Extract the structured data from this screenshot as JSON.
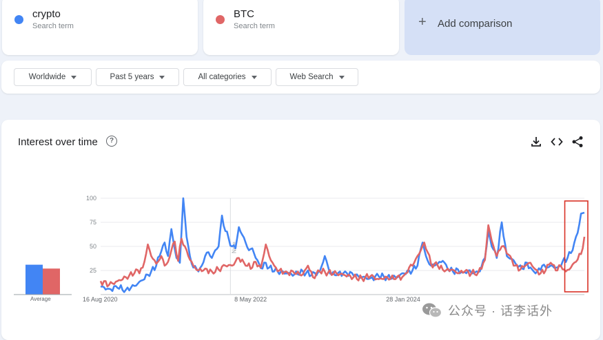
{
  "terms": [
    {
      "name": "crypto",
      "sub": "Search term",
      "color": "#4285f4"
    },
    {
      "name": "BTC",
      "sub": "Search term",
      "color": "#e06666"
    }
  ],
  "add_comparison": {
    "label": "Add comparison",
    "icon": "plus-icon"
  },
  "filters": [
    {
      "label": "Worldwide"
    },
    {
      "label": "Past 5 years"
    },
    {
      "label": "All categories"
    },
    {
      "label": "Web Search"
    }
  ],
  "chart_section": {
    "title": "Interest over time",
    "help_icon": "help-icon",
    "toolbar_icons": [
      "download-icon",
      "embed-icon",
      "share-icon"
    ]
  },
  "average_label": "Average",
  "watermark": {
    "text": "公众号 · 话李话外",
    "icon": "wechat-icon"
  },
  "chart_data": {
    "type": "line",
    "ylim": [
      0,
      100
    ],
    "yticks": [
      25,
      50,
      75,
      100
    ],
    "x_tick_labels": [
      {
        "label": "16 Aug 2020",
        "index": 0
      },
      {
        "label": "8 May 2022",
        "index": 90
      },
      {
        "label": "28 Jan 2024",
        "index": 180
      }
    ],
    "note_marker": {
      "label": "Note",
      "index": 77
    },
    "highlight_range": [
      277,
      287
    ],
    "averages": [
      {
        "name": "crypto",
        "value": 31,
        "color": "#4285f4"
      },
      {
        "name": "BTC",
        "value": 27,
        "color": "#e06666"
      }
    ],
    "series": [
      {
        "name": "crypto",
        "color": "#4285f4",
        "keypoints": [
          [
            0,
            8
          ],
          [
            5,
            6
          ],
          [
            10,
            7
          ],
          [
            15,
            5
          ],
          [
            20,
            9
          ],
          [
            25,
            15
          ],
          [
            30,
            24
          ],
          [
            33,
            30
          ],
          [
            36,
            45
          ],
          [
            38,
            54
          ],
          [
            40,
            40
          ],
          [
            42,
            68
          ],
          [
            43,
            57
          ],
          [
            45,
            38
          ],
          [
            47,
            33
          ],
          [
            49,
            100
          ],
          [
            51,
            60
          ],
          [
            53,
            40
          ],
          [
            55,
            28
          ],
          [
            58,
            24
          ],
          [
            60,
            30
          ],
          [
            62,
            40
          ],
          [
            64,
            44
          ],
          [
            66,
            38
          ],
          [
            68,
            46
          ],
          [
            70,
            50
          ],
          [
            72,
            82
          ],
          [
            74,
            66
          ],
          [
            76,
            58
          ],
          [
            78,
            50
          ],
          [
            80,
            48
          ],
          [
            82,
            70
          ],
          [
            84,
            62
          ],
          [
            86,
            54
          ],
          [
            88,
            46
          ],
          [
            90,
            48
          ],
          [
            92,
            38
          ],
          [
            94,
            32
          ],
          [
            96,
            27
          ],
          [
            98,
            33
          ],
          [
            100,
            28
          ],
          [
            105,
            24
          ],
          [
            110,
            22
          ],
          [
            115,
            21
          ],
          [
            120,
            24
          ],
          [
            125,
            20
          ],
          [
            130,
            24
          ],
          [
            133,
            40
          ],
          [
            136,
            22
          ],
          [
            140,
            20
          ],
          [
            145,
            24
          ],
          [
            150,
            20
          ],
          [
            155,
            18
          ],
          [
            160,
            17
          ],
          [
            165,
            19
          ],
          [
            170,
            18
          ],
          [
            175,
            18
          ],
          [
            180,
            22
          ],
          [
            185,
            25
          ],
          [
            188,
            30
          ],
          [
            191,
            54
          ],
          [
            193,
            40
          ],
          [
            196,
            30
          ],
          [
            200,
            32
          ],
          [
            203,
            35
          ],
          [
            206,
            26
          ],
          [
            209,
            24
          ],
          [
            212,
            26
          ],
          [
            215,
            23
          ],
          [
            218,
            25
          ],
          [
            221,
            22
          ],
          [
            225,
            24
          ],
          [
            228,
            38
          ],
          [
            230,
            66
          ],
          [
            232,
            50
          ],
          [
            235,
            38
          ],
          [
            238,
            75
          ],
          [
            241,
            40
          ],
          [
            244,
            37
          ],
          [
            247,
            30
          ],
          [
            250,
            27
          ],
          [
            253,
            33
          ],
          [
            256,
            26
          ],
          [
            259,
            24
          ],
          [
            262,
            30
          ],
          [
            265,
            28
          ],
          [
            268,
            30
          ],
          [
            271,
            28
          ],
          [
            274,
            34
          ],
          [
            277,
            38
          ],
          [
            280,
            46
          ],
          [
            283,
            64
          ],
          [
            285,
            84
          ],
          [
            287,
            85
          ]
        ]
      },
      {
        "name": "BTC",
        "color": "#e06666",
        "keypoints": [
          [
            0,
            14
          ],
          [
            5,
            10
          ],
          [
            10,
            14
          ],
          [
            15,
            18
          ],
          [
            20,
            22
          ],
          [
            25,
            28
          ],
          [
            28,
            52
          ],
          [
            30,
            40
          ],
          [
            33,
            32
          ],
          [
            36,
            40
          ],
          [
            38,
            30
          ],
          [
            40,
            34
          ],
          [
            42,
            46
          ],
          [
            44,
            55
          ],
          [
            46,
            35
          ],
          [
            48,
            58
          ],
          [
            50,
            50
          ],
          [
            52,
            40
          ],
          [
            55,
            30
          ],
          [
            58,
            25
          ],
          [
            62,
            27
          ],
          [
            66,
            24
          ],
          [
            70,
            26
          ],
          [
            74,
            30
          ],
          [
            78,
            30
          ],
          [
            82,
            38
          ],
          [
            86,
            30
          ],
          [
            90,
            28
          ],
          [
            92,
            34
          ],
          [
            95,
            28
          ],
          [
            98,
            52
          ],
          [
            100,
            40
          ],
          [
            103,
            30
          ],
          [
            106,
            25
          ],
          [
            110,
            24
          ],
          [
            115,
            22
          ],
          [
            120,
            21
          ],
          [
            123,
            30
          ],
          [
            126,
            18
          ],
          [
            130,
            24
          ],
          [
            135,
            23
          ],
          [
            140,
            22
          ],
          [
            145,
            20
          ],
          [
            150,
            18
          ],
          [
            155,
            17
          ],
          [
            160,
            19
          ],
          [
            165,
            16
          ],
          [
            170,
            18
          ],
          [
            175,
            16
          ],
          [
            180,
            20
          ],
          [
            183,
            28
          ],
          [
            186,
            33
          ],
          [
            190,
            46
          ],
          [
            192,
            54
          ],
          [
            194,
            44
          ],
          [
            196,
            32
          ],
          [
            200,
            30
          ],
          [
            204,
            24
          ],
          [
            208,
            26
          ],
          [
            212,
            22
          ],
          [
            216,
            24
          ],
          [
            220,
            22
          ],
          [
            224,
            23
          ],
          [
            228,
            36
          ],
          [
            230,
            72
          ],
          [
            232,
            56
          ],
          [
            235,
            40
          ],
          [
            238,
            50
          ],
          [
            240,
            48
          ],
          [
            243,
            40
          ],
          [
            246,
            30
          ],
          [
            249,
            26
          ],
          [
            252,
            30
          ],
          [
            255,
            33
          ],
          [
            258,
            26
          ],
          [
            261,
            22
          ],
          [
            264,
            25
          ],
          [
            267,
            33
          ],
          [
            270,
            25
          ],
          [
            273,
            30
          ],
          [
            276,
            24
          ],
          [
            279,
            28
          ],
          [
            282,
            34
          ],
          [
            285,
            42
          ],
          [
            287,
            60
          ]
        ]
      }
    ]
  }
}
